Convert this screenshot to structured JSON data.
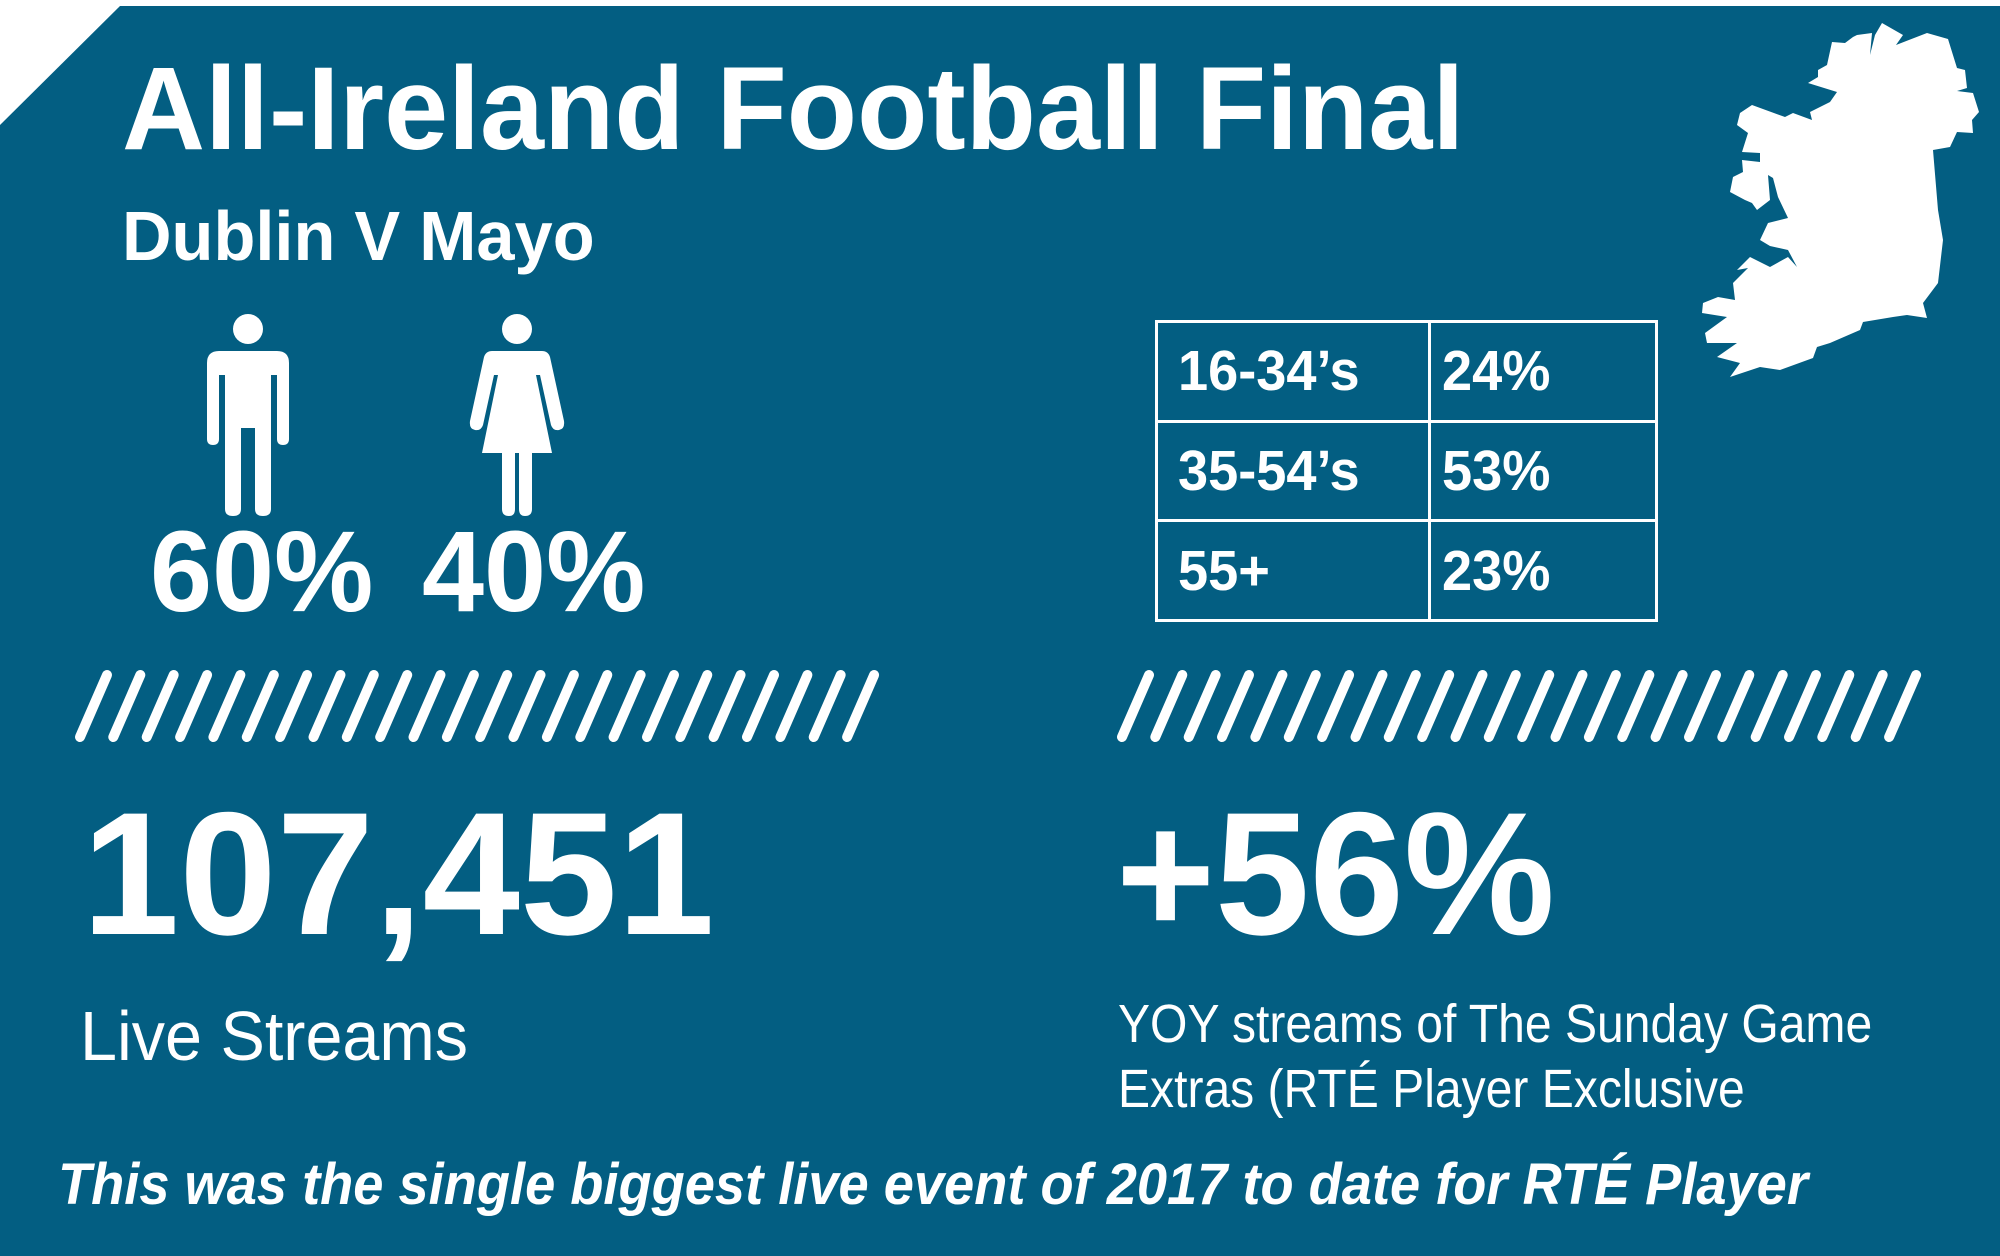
{
  "theme": {
    "background": "#035e82",
    "foreground": "#ffffff",
    "page": "#ffffff"
  },
  "header": {
    "title": "All-Ireland Football Final",
    "subtitle": "Dublin V Mayo"
  },
  "map": {
    "icon": "ireland-map-icon"
  },
  "gender": {
    "male": {
      "icon": "male-person-icon",
      "value": "60%"
    },
    "female": {
      "icon": "female-person-icon",
      "value": "40%"
    }
  },
  "age_table": {
    "rows": [
      {
        "group": "16-34’s",
        "share": "24%"
      },
      {
        "group": "35-54’s",
        "share": "53%"
      },
      {
        "group": "55+",
        "share": "23%"
      }
    ]
  },
  "separators": {
    "left": {
      "count": 24,
      "glyph": "/"
    },
    "right": {
      "count": 24,
      "glyph": "/"
    }
  },
  "stats": {
    "live_streams": {
      "value": "107,451",
      "label": "Live Streams"
    },
    "yoy": {
      "value": "+56%",
      "label_line1": "YOY streams of The Sunday Game",
      "label_line2": "Extras (RTÉ Player Exclusive"
    }
  },
  "footer": {
    "text": "This was the single biggest live event of 2017 to date for RTÉ Player"
  }
}
